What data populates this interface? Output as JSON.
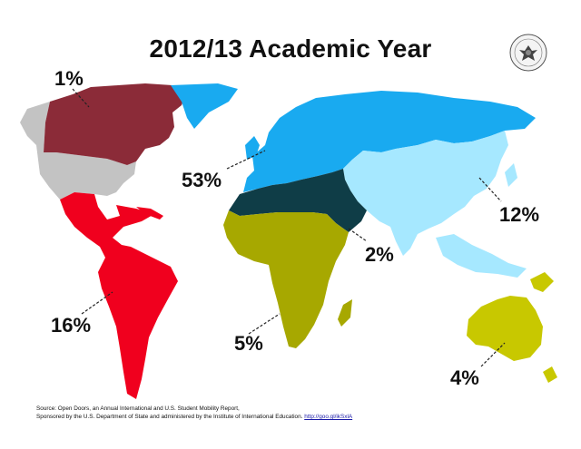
{
  "title": "2012/13 Academic Year",
  "regions": [
    {
      "name": "North America",
      "color": "#8b2b38",
      "percent": "1%"
    },
    {
      "name": "United States",
      "color": "#c3c3c3",
      "percent": ""
    },
    {
      "name": "Europe",
      "color": "#19aaf0",
      "percent": "53%"
    },
    {
      "name": "Asia",
      "color": "#a6e8ff",
      "percent": "12%"
    },
    {
      "name": "Middle East and North Africa",
      "color": "#0f3d47",
      "percent": "2%"
    },
    {
      "name": "Sub-Saharan Africa",
      "color": "#a7a800",
      "percent": "5%"
    },
    {
      "name": "Latin America",
      "color": "#f0001e",
      "percent": "16%"
    },
    {
      "name": "Oceania",
      "color": "#c8c800",
      "percent": "4%"
    }
  ],
  "source": {
    "line1": "Source: Open Doors, an Annual International and U.S. Student Mobility Report,",
    "line2": "Sponsored by the U.S. Department of State and administered by the Institute of International Education.",
    "link": "http://goo.gl/ikSxlA"
  },
  "seal_icon": "us-department-of-state-seal-icon"
}
